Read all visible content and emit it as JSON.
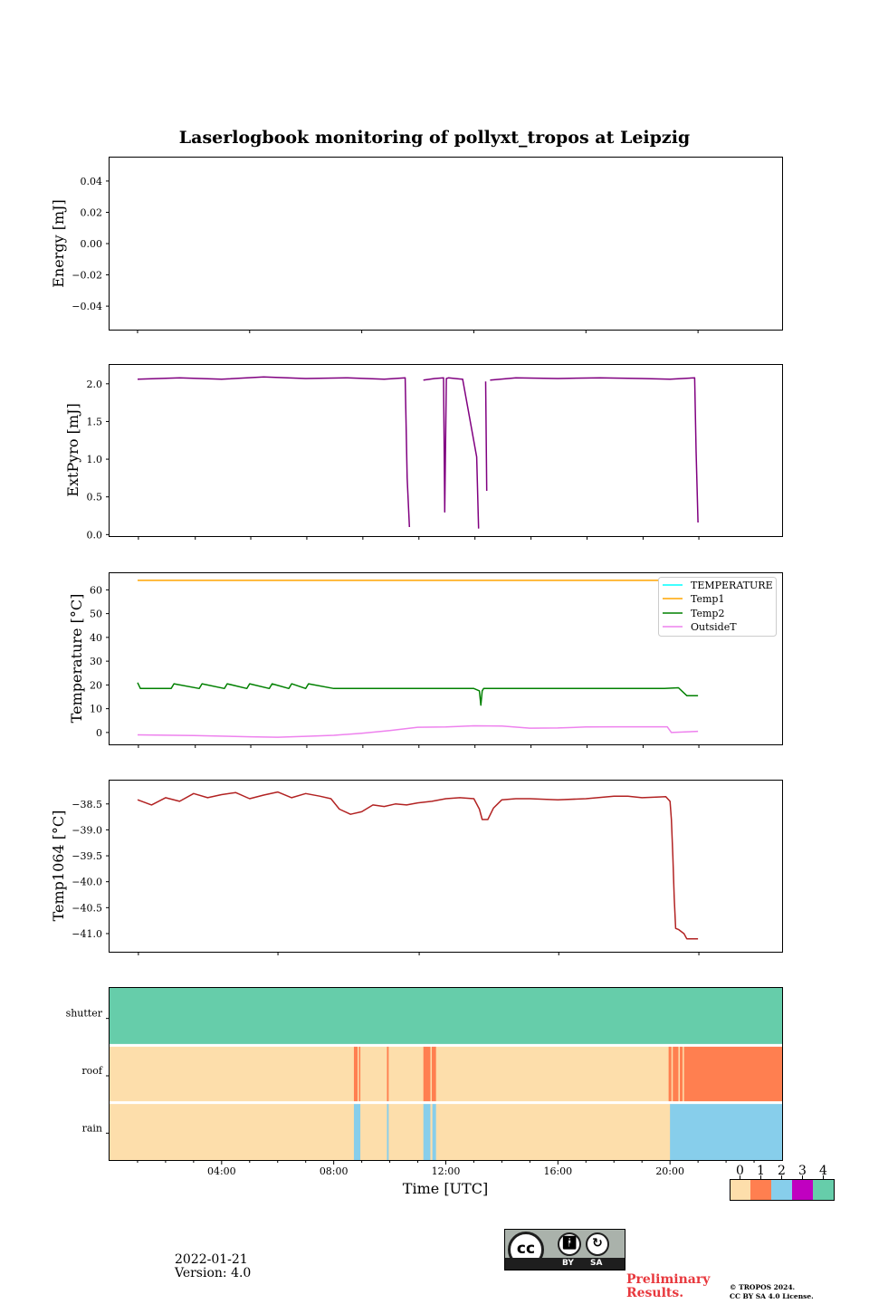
{
  "title": "Laserlogbook monitoring of pollyxt_tropos at Leipzig",
  "footer": {
    "date": "2022-01-21",
    "version": "Version: 4.0",
    "preliminary": "Preliminary",
    "results": "Results.",
    "copyright1": "© TROPOS 2024.",
    "copyright2": "CC BY SA 4.0 License.",
    "license_badge": {
      "by": "BY",
      "sa": "SA",
      "cc": "cc"
    }
  },
  "colors": {
    "energy": "#000000",
    "extpyro": "#800080",
    "temperature": "#00ffff",
    "temp1": "#ffa500",
    "temp2": "#008000",
    "outsideT": "#ee82ee",
    "temp1064": "#b22222",
    "status": [
      "#fddeab",
      "#ff7f50",
      "#87ceeb",
      "#c000c0",
      "#66cdaa"
    ]
  },
  "chart_data": [
    {
      "id": "energy",
      "type": "line",
      "ylabel": "Energy [mJ]",
      "ylim": [
        -0.055,
        0.055
      ],
      "yticks": [
        0.04,
        0.02,
        0.0,
        -0.02,
        -0.04
      ],
      "yticklabels": [
        "0.04",
        "0.02",
        "0.00",
        "−0.02",
        "−0.04"
      ],
      "xlim": [
        0,
        24
      ],
      "xticks": [
        1,
        5,
        9,
        13,
        17,
        21
      ],
      "series": []
    },
    {
      "id": "extpyro",
      "type": "line",
      "ylabel": "ExtPyro [mJ]",
      "ylim": [
        -0.02,
        2.25
      ],
      "yticks": [
        2.0,
        1.5,
        1.0,
        0.5,
        0.0
      ],
      "yticklabels": [
        "2.0",
        "1.5",
        "1.0",
        "0.5",
        "0.0"
      ],
      "xlim": [
        0,
        24
      ],
      "xticks": [
        1.03,
        3.06,
        5.04,
        7.04,
        9.04,
        11.04,
        13.04,
        15.04,
        17.04,
        19.04,
        21.03
      ],
      "series": [
        {
          "name": "ExtPyro",
          "x": [
            1.0,
            2.5,
            4.0,
            5.5,
            7.0,
            8.5,
            9.8,
            10.55,
            10.62,
            10.7,
            10.78,
            11.2,
            11.6,
            11.92,
            11.96,
            12.02,
            12.1,
            12.6,
            13.1,
            13.17,
            13.23,
            13.42,
            13.46,
            13.5,
            13.58,
            14.5,
            16.0,
            17.5,
            19.0,
            20.0,
            20.88,
            20.93,
            21.0
          ],
          "y": [
            2.06,
            2.08,
            2.06,
            2.09,
            2.07,
            2.08,
            2.06,
            2.08,
            0.75,
            0.1,
            null,
            2.05,
            2.07,
            2.08,
            0.3,
            2.07,
            2.08,
            2.06,
            1.03,
            0.08,
            null,
            2.03,
            0.58,
            null,
            2.05,
            2.08,
            2.07,
            2.08,
            2.07,
            2.06,
            2.08,
            1.1,
            0.16
          ]
        }
      ]
    },
    {
      "id": "temperature",
      "type": "line",
      "ylabel": "Temperature [°C]",
      "ylim": [
        -5,
        67
      ],
      "yticks": [
        60,
        50,
        40,
        30,
        20,
        10,
        0
      ],
      "yticklabels": [
        "60",
        "50",
        "40",
        "30",
        "20",
        "10",
        "0"
      ],
      "xlim": [
        0,
        24
      ],
      "xticks": [
        1.03,
        3.06,
        5.04,
        7.04,
        9.04,
        11.04,
        13.04,
        15.04,
        17.04,
        19.04,
        21.03
      ],
      "legend": {
        "position": "top-right",
        "entries": [
          "TEMPERATURE",
          "Temp1",
          "Temp2",
          "OutsideT"
        ]
      },
      "series": [
        {
          "name": "TEMPERATURE",
          "x": [],
          "y": []
        },
        {
          "name": "Temp1",
          "x": [
            1.0,
            21.0
          ],
          "y": [
            64,
            64
          ]
        },
        {
          "name": "Temp2",
          "x": [
            1.0,
            1.1,
            1.4,
            2.2,
            2.3,
            3.2,
            3.3,
            4.1,
            4.2,
            4.9,
            5.0,
            5.7,
            5.8,
            6.4,
            6.5,
            7.0,
            7.1,
            8.0,
            10.0,
            12.0,
            13.0,
            13.2,
            13.25,
            13.3,
            13.35,
            14.0,
            16.0,
            18.0,
            19.8,
            20.3,
            20.6,
            21.0
          ],
          "y": [
            21,
            18.5,
            18.5,
            18.5,
            20.5,
            18.5,
            20.5,
            18.5,
            20.5,
            18.5,
            20.5,
            18.5,
            20.5,
            18.5,
            20.5,
            18.5,
            20.5,
            18.5,
            18.5,
            18.5,
            18.5,
            17.5,
            11.5,
            17.5,
            18.5,
            18.5,
            18.5,
            18.5,
            18.5,
            18.8,
            15.5,
            15.5
          ]
        },
        {
          "name": "OutsideT",
          "x": [
            1.0,
            3.0,
            5.0,
            6.0,
            7.0,
            8.0,
            9.0,
            10.0,
            11.0,
            12.0,
            13.0,
            14.0,
            15.0,
            16.0,
            17.0,
            18.0,
            19.0,
            19.9,
            20.05,
            21.0
          ],
          "y": [
            -1,
            -1.3,
            -1.8,
            -2,
            -1.6,
            -1.2,
            -0.3,
            0.8,
            2.2,
            2.3,
            2.8,
            2.7,
            1.8,
            1.9,
            2.3,
            2.4,
            2.4,
            2.4,
            0,
            0.5
          ]
        }
      ]
    },
    {
      "id": "temp1064",
      "type": "line",
      "ylabel": "Temp1064 [°C]",
      "ylim": [
        -41.35,
        -38.05
      ],
      "yticks": [
        -38.5,
        -39.0,
        -39.5,
        -40.0,
        -40.5,
        -41.0
      ],
      "yticklabels": [
        "−38.5",
        "−39.0",
        "−39.5",
        "−40.0",
        "−40.5",
        "−41.0"
      ],
      "xlim": [
        0,
        24
      ],
      "xticks": [
        1.03,
        6.01,
        11.05,
        16.03,
        21.03
      ],
      "series": [
        {
          "name": "Temp1064",
          "x": [
            1.0,
            1.5,
            2.0,
            2.5,
            3.0,
            3.5,
            4.0,
            4.5,
            5.0,
            5.5,
            6.0,
            6.5,
            7.0,
            7.5,
            7.9,
            8.2,
            8.6,
            9.0,
            9.4,
            9.8,
            10.2,
            10.6,
            11.0,
            11.5,
            12.0,
            12.5,
            13.0,
            13.2,
            13.3,
            13.5,
            13.7,
            14.0,
            14.5,
            15.0,
            16.0,
            17.0,
            18.0,
            18.5,
            19.0,
            19.5,
            19.85,
            20.0,
            20.05,
            20.1,
            20.15,
            20.2,
            20.3,
            20.5,
            20.6,
            20.7,
            21.0
          ],
          "y": [
            -38.42,
            -38.52,
            -38.38,
            -38.45,
            -38.3,
            -38.38,
            -38.32,
            -38.28,
            -38.4,
            -38.33,
            -38.27,
            -38.38,
            -38.3,
            -38.35,
            -38.4,
            -38.6,
            -38.7,
            -38.65,
            -38.52,
            -38.55,
            -38.5,
            -38.52,
            -38.48,
            -38.45,
            -38.4,
            -38.38,
            -38.4,
            -38.6,
            -38.8,
            -38.8,
            -38.58,
            -38.42,
            -38.4,
            -38.4,
            -38.42,
            -38.4,
            -38.35,
            -38.35,
            -38.38,
            -38.37,
            -38.36,
            -38.45,
            -38.8,
            -39.5,
            -40.3,
            -40.9,
            -40.92,
            -41.0,
            -41.1,
            -41.1,
            -41.1
          ]
        }
      ]
    },
    {
      "id": "status",
      "type": "heatmap",
      "xlabel": "Time [UTC]",
      "xlim": [
        0,
        24
      ],
      "xtick_values": [
        4,
        8,
        12,
        16,
        20
      ],
      "xticklabels": [
        "04:00",
        "08:00",
        "12:00",
        "16:00",
        "20:00"
      ],
      "rows": [
        "shutter",
        "roof",
        "rain"
      ],
      "background": [
        4,
        0,
        0
      ],
      "segments": {
        "shutter": [],
        "roof": [
          [
            8.72,
            8.85,
            1
          ],
          [
            8.9,
            8.95,
            1
          ],
          [
            9.9,
            9.96,
            1
          ],
          [
            11.2,
            11.45,
            1
          ],
          [
            11.5,
            11.65,
            1
          ],
          [
            19.95,
            20.05,
            1
          ],
          [
            20.1,
            20.3,
            1
          ],
          [
            20.35,
            20.45,
            1
          ],
          [
            20.5,
            24,
            1
          ]
        ],
        "rain": [
          [
            8.72,
            8.95,
            2
          ],
          [
            9.9,
            9.96,
            2
          ],
          [
            11.2,
            11.45,
            2
          ],
          [
            11.52,
            11.65,
            2
          ],
          [
            20.0,
            24,
            2
          ]
        ]
      },
      "colorbar": {
        "ticks": [
          "0",
          "1",
          "2",
          "3",
          "4"
        ]
      }
    }
  ]
}
